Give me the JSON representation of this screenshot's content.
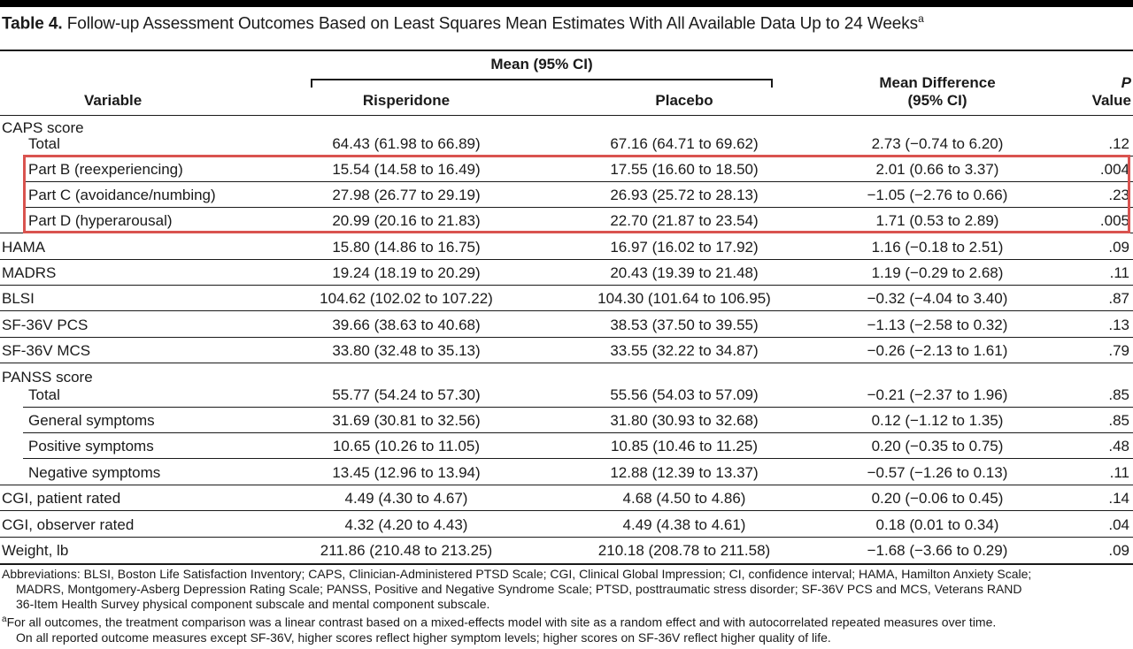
{
  "title": {
    "label": "Table 4.",
    "text": "Follow-up Assessment Outcomes Based on Least Squares Mean Estimates With All Available Data Up to 24 Weeks",
    "footnote_mark": "a"
  },
  "header": {
    "variable": "Variable",
    "mean_group": "Mean (95% CI)",
    "risperidone": "Risperidone",
    "placebo": "Placebo",
    "mean_diff_line1": "Mean Difference",
    "mean_diff_line2": "(95% CI)",
    "p_line1": "P",
    "p_line2": "Value"
  },
  "rows": [
    {
      "variable": "CAPS score",
      "risperidone": "",
      "placebo": "",
      "diff": "",
      "p": "",
      "indent": false
    },
    {
      "variable": "Total",
      "risperidone": "64.43 (61.98 to 66.89)",
      "placebo": "67.16 (64.71 to 69.62)",
      "diff": "2.73 (−0.74 to 6.20)",
      "p": ".12",
      "indent": true
    },
    {
      "variable": "Part B (reexperiencing)",
      "risperidone": "15.54 (14.58 to 16.49)",
      "placebo": "17.55 (16.60 to 18.50)",
      "diff": "2.01 (0.66 to 3.37)",
      "p": ".004",
      "indent": true
    },
    {
      "variable": "Part C (avoidance/numbing)",
      "risperidone": "27.98 (26.77 to 29.19)",
      "placebo": "26.93 (25.72 to 28.13)",
      "diff": "−1.05 (−2.76 to 0.66)",
      "p": ".23",
      "indent": true
    },
    {
      "variable": "Part D (hyperarousal)",
      "risperidone": "20.99 (20.16 to 21.83)",
      "placebo": "22.70 (21.87 to 23.54)",
      "diff": "1.71 (0.53 to 2.89)",
      "p": ".005",
      "indent": true
    },
    {
      "variable": "HAMA",
      "risperidone": "15.80 (14.86 to 16.75)",
      "placebo": "16.97 (16.02 to 17.92)",
      "diff": "1.16 (−0.18 to 2.51)",
      "p": ".09",
      "indent": false
    },
    {
      "variable": "MADRS",
      "risperidone": "19.24 (18.19 to 20.29)",
      "placebo": "20.43 (19.39 to 21.48)",
      "diff": "1.19 (−0.29 to 2.68)",
      "p": ".11",
      "indent": false
    },
    {
      "variable": "BLSI",
      "risperidone": "104.62 (102.02 to 107.22)",
      "placebo": "104.30 (101.64 to 106.95)",
      "diff": "−0.32 (−4.04 to 3.40)",
      "p": ".87",
      "indent": false
    },
    {
      "variable": "SF-36V PCS",
      "risperidone": "39.66 (38.63 to 40.68)",
      "placebo": "38.53 (37.50 to 39.55)",
      "diff": "−1.13 (−2.58 to 0.32)",
      "p": ".13",
      "indent": false
    },
    {
      "variable": "SF-36V MCS",
      "risperidone": "33.80 (32.48 to 35.13)",
      "placebo": "33.55 (32.22 to 34.87)",
      "diff": "−0.26 (−2.13 to 1.61)",
      "p": ".79",
      "indent": false
    },
    {
      "variable": "PANSS score",
      "risperidone": "",
      "placebo": "",
      "diff": "",
      "p": "",
      "indent": false
    },
    {
      "variable": "Total",
      "risperidone": "55.77 (54.24 to 57.30)",
      "placebo": "55.56 (54.03 to 57.09)",
      "diff": "−0.21 (−2.37 to 1.96)",
      "p": ".85",
      "indent": true
    },
    {
      "variable": "General symptoms",
      "risperidone": "31.69 (30.81 to 32.56)",
      "placebo": "31.80 (30.93 to 32.68)",
      "diff": "0.12 (−1.12 to 1.35)",
      "p": ".85",
      "indent": true
    },
    {
      "variable": "Positive symptoms",
      "risperidone": "10.65 (10.26 to 11.05)",
      "placebo": "10.85 (10.46 to 11.25)",
      "diff": "0.20 (−0.35 to 0.75)",
      "p": ".48",
      "indent": true
    },
    {
      "variable": "Negative symptoms",
      "risperidone": "13.45 (12.96 to 13.94)",
      "placebo": "12.88 (12.39 to 13.37)",
      "diff": "−0.57 (−1.26 to 0.13)",
      "p": ".11",
      "indent": true
    },
    {
      "variable": "CGI, patient rated",
      "risperidone": "4.49 (4.30 to 4.67)",
      "placebo": "4.68 (4.50 to 4.86)",
      "diff": "0.20 (−0.06 to 0.45)",
      "p": ".14",
      "indent": false
    },
    {
      "variable": "CGI, observer rated",
      "risperidone": "4.32 (4.20 to 4.43)",
      "placebo": "4.49 (4.38 to 4.61)",
      "diff": "0.18 (0.01 to 0.34)",
      "p": ".04",
      "indent": false
    },
    {
      "variable": "Weight, lb",
      "risperidone": "211.86 (210.48 to 213.25)",
      "placebo": "210.18 (208.78 to 211.58)",
      "diff": "−1.68 (−3.66 to 0.29)",
      "p": ".09",
      "indent": false
    }
  ],
  "footnotes": {
    "abbreviations_line1": "Abbreviations: BLSI, Boston Life Satisfaction Inventory; CAPS, Clinician-Administered PTSD Scale; CGI, Clinical Global Impression; CI, confidence interval; HAMA, Hamilton Anxiety Scale;",
    "abbreviations_line2": "MADRS, Montgomery-Asberg Depression Rating Scale; PANSS, Positive and Negative Syndrome Scale; PTSD, posttraumatic stress disorder; SF-36V PCS and MCS, Veterans RAND",
    "abbreviations_line3": "36-Item Health Survey physical component subscale and mental component subscale.",
    "note_mark": "a",
    "note_line1": "For all outcomes, the treatment comparison was a linear contrast based on a mixed-effects model with site as a random effect and with autocorrelated repeated measures over time.",
    "note_line2": "On all reported outcome measures except SF-36V, higher scores reflect higher symptom levels; higher scores on SF-36V reflect higher quality of life."
  },
  "colors": {
    "highlight_box": "#d9534f",
    "text": "#1a1a1a"
  }
}
